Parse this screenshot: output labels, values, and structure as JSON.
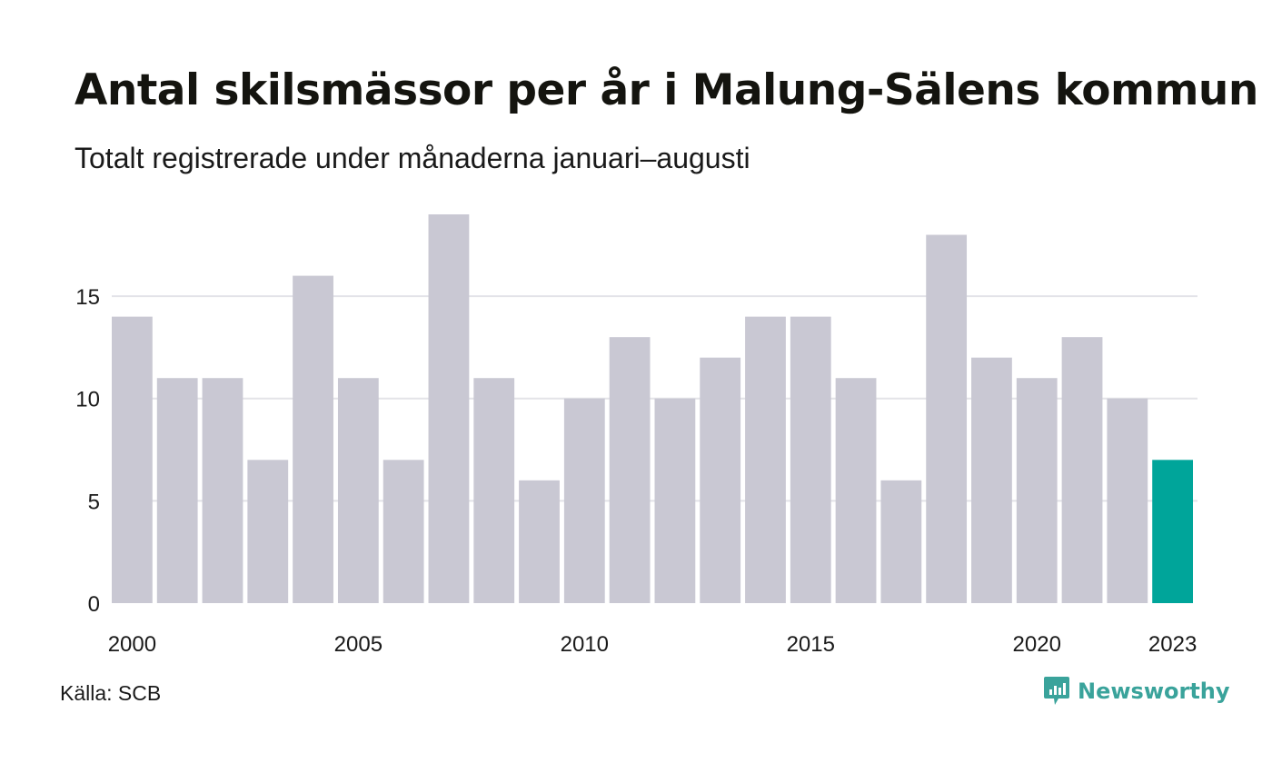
{
  "chart_data": {
    "type": "bar",
    "title": "Antal skilsmässor per år i Malung-Sälens kommun",
    "subtitle": "Totalt registrerade under månaderna januari–augusti",
    "categories": [
      "2000",
      "2001",
      "2002",
      "2003",
      "2004",
      "2005",
      "2006",
      "2007",
      "2008",
      "2009",
      "2010",
      "2011",
      "2012",
      "2013",
      "2014",
      "2015",
      "2016",
      "2017",
      "2018",
      "2019",
      "2020",
      "2021",
      "2022",
      "2023"
    ],
    "values": [
      14,
      11,
      11,
      7,
      16,
      11,
      7,
      19,
      11,
      6,
      10,
      13,
      10,
      12,
      14,
      14,
      11,
      6,
      18,
      12,
      11,
      13,
      10,
      7
    ],
    "x_tick_labels": [
      "2000",
      "2005",
      "2010",
      "2015",
      "2020",
      "2023"
    ],
    "y_ticks": [
      0,
      5,
      10,
      15
    ],
    "ylim": [
      0,
      19
    ],
    "grid": true,
    "colors": {
      "bar": "#c9c8d3",
      "highlight": "#00a59a",
      "grid": "#e3e3e8"
    },
    "highlight_category": "2023"
  },
  "source": "Källa: SCB",
  "brand": {
    "name": "Newsworthy",
    "icon": "newsworthy-logo-icon",
    "color": "#3aa39b"
  }
}
